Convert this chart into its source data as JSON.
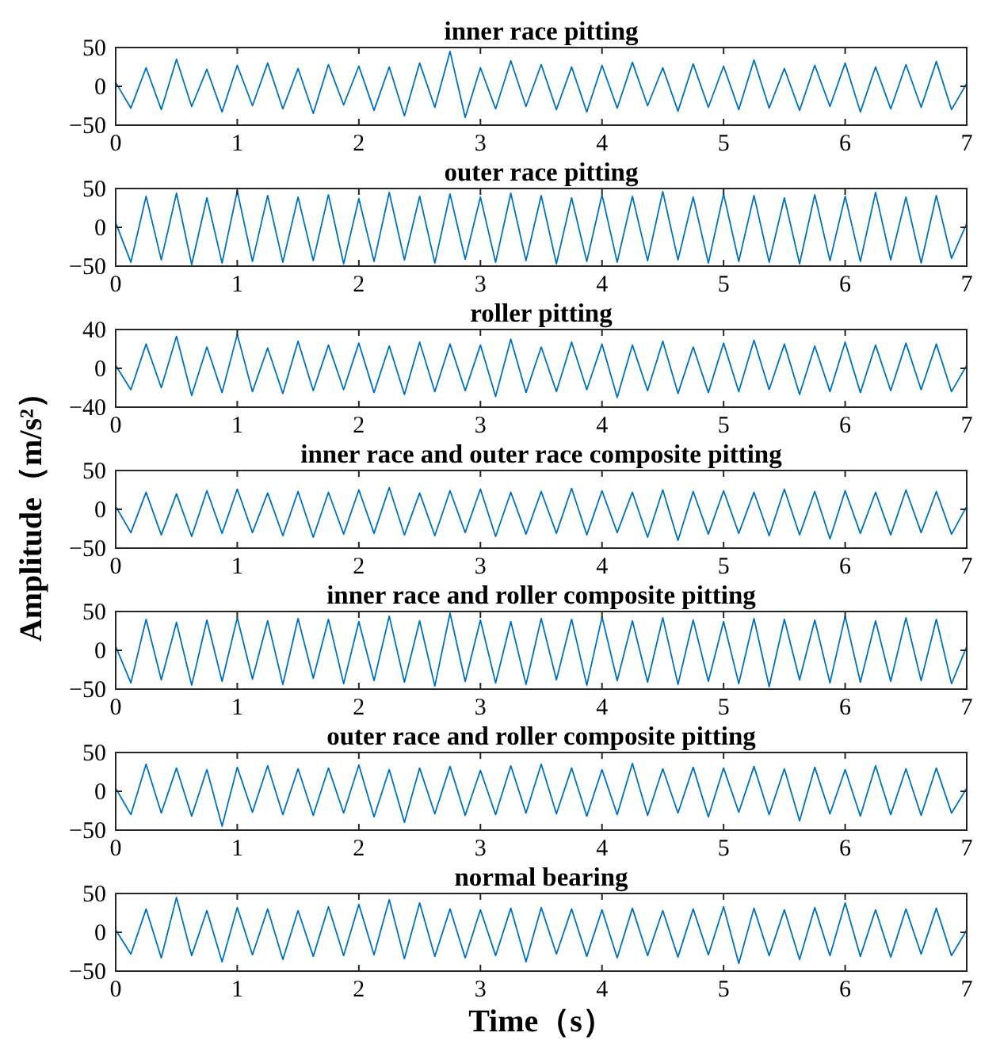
{
  "chart_data": [
    {
      "type": "line",
      "title": "inner race pitting",
      "x": [
        0,
        0.125,
        0.25,
        0.375,
        0.5,
        0.625,
        0.75,
        0.875,
        1,
        1.125,
        1.25,
        1.375,
        1.5,
        1.625,
        1.75,
        1.875,
        2,
        2.125,
        2.25,
        2.375,
        2.5,
        2.625,
        2.75,
        2.875,
        3,
        3.125,
        3.25,
        3.375,
        3.5,
        3.625,
        3.75,
        3.875,
        4,
        4.125,
        4.25,
        4.375,
        4.5,
        4.625,
        4.75,
        4.875,
        5,
        5.125,
        5.25,
        5.375,
        5.5,
        5.625,
        5.75,
        5.875,
        6,
        6.125,
        6.25,
        6.375,
        6.5,
        6.625,
        6.75,
        6.875,
        7
      ],
      "series": [
        {
          "color": "#0072bd",
          "values": [
            5,
            -28,
            24,
            -30,
            35,
            -26,
            22,
            -33,
            27,
            -25,
            30,
            -29,
            23,
            -35,
            28,
            -24,
            26,
            -31,
            25,
            -38,
            30,
            -27,
            45,
            -40,
            24,
            -29,
            33,
            -26,
            28,
            -30,
            25,
            -33,
            27,
            -28,
            31,
            -25,
            24,
            -32,
            29,
            -27,
            26,
            -30,
            34,
            -28,
            23,
            -31,
            27,
            -26,
            30,
            -33,
            25,
            -29,
            28,
            -27,
            32,
            -30,
            4
          ]
        }
      ],
      "xlim": [
        0,
        7
      ],
      "xticks": [
        0,
        1,
        2,
        3,
        4,
        5,
        6,
        7
      ],
      "ylim": [
        -50,
        50
      ],
      "yticks": [
        -50,
        0,
        50
      ]
    },
    {
      "type": "line",
      "title": "outer race pitting",
      "x": [
        0,
        0.125,
        0.25,
        0.375,
        0.5,
        0.625,
        0.75,
        0.875,
        1,
        1.125,
        1.25,
        1.375,
        1.5,
        1.625,
        1.75,
        1.875,
        2,
        2.125,
        2.25,
        2.375,
        2.5,
        2.625,
        2.75,
        2.875,
        3,
        3.125,
        3.25,
        3.375,
        3.5,
        3.625,
        3.75,
        3.875,
        4,
        4.125,
        4.25,
        4.375,
        4.5,
        4.625,
        4.75,
        4.875,
        5,
        5.125,
        5.25,
        5.375,
        5.5,
        5.625,
        5.75,
        5.875,
        6,
        6.125,
        6.25,
        6.375,
        6.5,
        6.625,
        6.75,
        6.875,
        7
      ],
      "series": [
        {
          "color": "#0072bd",
          "values": [
            6,
            -45,
            40,
            -42,
            44,
            -48,
            38,
            -46,
            47,
            -44,
            41,
            -45,
            39,
            -43,
            42,
            -47,
            37,
            -44,
            45,
            -42,
            40,
            -46,
            43,
            -41,
            39,
            -45,
            44,
            -43,
            41,
            -47,
            38,
            -44,
            42,
            -45,
            40,
            -43,
            46,
            -42,
            39,
            -46,
            43,
            -44,
            41,
            -45,
            38,
            -47,
            42,
            -43,
            40,
            -44,
            45,
            -42,
            39,
            -46,
            41,
            -40,
            5
          ]
        }
      ],
      "xlim": [
        0,
        7
      ],
      "xticks": [
        0,
        1,
        2,
        3,
        4,
        5,
        6,
        7
      ],
      "ylim": [
        -50,
        50
      ],
      "yticks": [
        -50,
        0,
        50
      ]
    },
    {
      "type": "line",
      "title": "roller pitting",
      "x": [
        0,
        0.125,
        0.25,
        0.375,
        0.5,
        0.625,
        0.75,
        0.875,
        1,
        1.125,
        1.25,
        1.375,
        1.5,
        1.625,
        1.75,
        1.875,
        2,
        2.125,
        2.25,
        2.375,
        2.5,
        2.625,
        2.75,
        2.875,
        3,
        3.125,
        3.25,
        3.375,
        3.5,
        3.625,
        3.75,
        3.875,
        4,
        4.125,
        4.25,
        4.375,
        4.5,
        4.625,
        4.75,
        4.875,
        5,
        5.125,
        5.25,
        5.375,
        5.5,
        5.625,
        5.75,
        5.875,
        6,
        6.125,
        6.25,
        6.375,
        6.5,
        6.625,
        6.75,
        6.875,
        7
      ],
      "series": [
        {
          "color": "#0072bd",
          "values": [
            3,
            -22,
            25,
            -20,
            33,
            -28,
            22,
            -25,
            35,
            -24,
            21,
            -26,
            28,
            -23,
            24,
            -22,
            26,
            -25,
            23,
            -27,
            27,
            -24,
            25,
            -23,
            24,
            -29,
            30,
            -25,
            22,
            -24,
            27,
            -22,
            25,
            -30,
            24,
            -23,
            28,
            -26,
            22,
            -25,
            26,
            -24,
            29,
            -22,
            25,
            -27,
            23,
            -24,
            27,
            -25,
            24,
            -23,
            26,
            -22,
            25,
            -24,
            3
          ]
        }
      ],
      "xlim": [
        0,
        7
      ],
      "xticks": [
        0,
        1,
        2,
        3,
        4,
        5,
        6,
        7
      ],
      "ylim": [
        -40,
        40
      ],
      "yticks": [
        -40,
        0,
        40
      ]
    },
    {
      "type": "line",
      "title": "inner race and outer race composite pitting",
      "ylabel": "Amplitude（m/s²）",
      "x": [
        0,
        0.125,
        0.25,
        0.375,
        0.5,
        0.625,
        0.75,
        0.875,
        1,
        1.125,
        1.25,
        1.375,
        1.5,
        1.625,
        1.75,
        1.875,
        2,
        2.125,
        2.25,
        2.375,
        2.5,
        2.625,
        2.75,
        2.875,
        3,
        3.125,
        3.25,
        3.375,
        3.5,
        3.625,
        3.75,
        3.875,
        4,
        4.125,
        4.25,
        4.375,
        4.5,
        4.625,
        4.75,
        4.875,
        5,
        5.125,
        5.25,
        5.375,
        5.5,
        5.625,
        5.75,
        5.875,
        6,
        6.125,
        6.25,
        6.375,
        6.5,
        6.625,
        6.75,
        6.875,
        7
      ],
      "series": [
        {
          "color": "#0072bd",
          "values": [
            4,
            -30,
            22,
            -33,
            20,
            -35,
            24,
            -31,
            26,
            -30,
            21,
            -34,
            23,
            -36,
            22,
            -32,
            25,
            -31,
            28,
            -33,
            21,
            -34,
            24,
            -30,
            26,
            -35,
            22,
            -32,
            23,
            -31,
            27,
            -33,
            24,
            -30,
            22,
            -36,
            25,
            -40,
            23,
            -32,
            24,
            -31,
            22,
            -34,
            26,
            -33,
            23,
            -38,
            24,
            -31,
            22,
            -33,
            25,
            -30,
            23,
            -32,
            4
          ]
        }
      ],
      "xlim": [
        0,
        7
      ],
      "xticks": [
        0,
        1,
        2,
        3,
        4,
        5,
        6,
        7
      ],
      "ylim": [
        -50,
        50
      ],
      "yticks": [
        -50,
        0,
        50
      ]
    },
    {
      "type": "line",
      "title": "inner race and roller composite pitting",
      "x": [
        0,
        0.125,
        0.25,
        0.375,
        0.5,
        0.625,
        0.75,
        0.875,
        1,
        1.125,
        1.25,
        1.375,
        1.5,
        1.625,
        1.75,
        1.875,
        2,
        2.125,
        2.25,
        2.375,
        2.5,
        2.625,
        2.75,
        2.875,
        3,
        3.125,
        3.25,
        3.375,
        3.5,
        3.625,
        3.75,
        3.875,
        4,
        4.125,
        4.25,
        4.375,
        4.5,
        4.625,
        4.75,
        4.875,
        5,
        5.125,
        5.25,
        5.375,
        5.5,
        5.625,
        5.75,
        5.875,
        6,
        6.125,
        6.25,
        6.375,
        6.5,
        6.625,
        6.75,
        6.875,
        7
      ],
      "series": [
        {
          "color": "#0072bd",
          "values": [
            5,
            -42,
            40,
            -38,
            36,
            -45,
            39,
            -40,
            42,
            -37,
            38,
            -44,
            41,
            -36,
            40,
            -43,
            37,
            -39,
            44,
            -41,
            38,
            -46,
            48,
            -40,
            39,
            -42,
            37,
            -44,
            41,
            -38,
            40,
            -45,
            43,
            -39,
            38,
            -41,
            42,
            -44,
            39,
            -40,
            37,
            -43,
            41,
            -47,
            40,
            -38,
            39,
            -42,
            44,
            -41,
            38,
            -40,
            42,
            -39,
            40,
            -43,
            5
          ]
        }
      ],
      "xlim": [
        0,
        7
      ],
      "xticks": [
        0,
        1,
        2,
        3,
        4,
        5,
        6,
        7
      ],
      "ylim": [
        -50,
        50
      ],
      "yticks": [
        -50,
        0,
        50
      ]
    },
    {
      "type": "line",
      "title": "outer race and roller composite pitting",
      "x": [
        0,
        0.125,
        0.25,
        0.375,
        0.5,
        0.625,
        0.75,
        0.875,
        1,
        1.125,
        1.25,
        1.375,
        1.5,
        1.625,
        1.75,
        1.875,
        2,
        2.125,
        2.25,
        2.375,
        2.5,
        2.625,
        2.75,
        2.875,
        3,
        3.125,
        3.25,
        3.375,
        3.5,
        3.625,
        3.75,
        3.875,
        4,
        4.125,
        4.25,
        4.375,
        4.5,
        4.625,
        4.75,
        4.875,
        5,
        5.125,
        5.25,
        5.375,
        5.5,
        5.625,
        5.75,
        5.875,
        6,
        6.125,
        6.25,
        6.375,
        6.5,
        6.625,
        6.75,
        6.875,
        7
      ],
      "series": [
        {
          "color": "#0072bd",
          "values": [
            4,
            -30,
            35,
            -28,
            30,
            -32,
            28,
            -45,
            31,
            -27,
            33,
            -30,
            29,
            -31,
            30,
            -28,
            34,
            -33,
            28,
            -40,
            30,
            -29,
            32,
            -31,
            27,
            -30,
            33,
            -28,
            35,
            -29,
            30,
            -32,
            28,
            -30,
            36,
            -31,
            29,
            -28,
            31,
            -33,
            30,
            -27,
            32,
            -30,
            29,
            -38,
            31,
            -29,
            28,
            -32,
            33,
            -30,
            29,
            -31,
            30,
            -28,
            4
          ]
        }
      ],
      "xlim": [
        0,
        7
      ],
      "xticks": [
        0,
        1,
        2,
        3,
        4,
        5,
        6,
        7
      ],
      "ylim": [
        -50,
        50
      ],
      "yticks": [
        -50,
        0,
        50
      ]
    },
    {
      "type": "line",
      "title": "normal bearing",
      "xlabel": "Time（s）",
      "x": [
        0,
        0.125,
        0.25,
        0.375,
        0.5,
        0.625,
        0.75,
        0.875,
        1,
        1.125,
        1.25,
        1.375,
        1.5,
        1.625,
        1.75,
        1.875,
        2,
        2.125,
        2.25,
        2.375,
        2.5,
        2.625,
        2.75,
        2.875,
        3,
        3.125,
        3.25,
        3.375,
        3.5,
        3.625,
        3.75,
        3.875,
        4,
        4.125,
        4.25,
        4.375,
        4.5,
        4.625,
        4.75,
        4.875,
        5,
        5.125,
        5.25,
        5.375,
        5.5,
        5.625,
        5.75,
        5.875,
        6,
        6.125,
        6.25,
        6.375,
        6.5,
        6.625,
        6.75,
        6.875,
        7
      ],
      "series": [
        {
          "color": "#0072bd",
          "values": [
            3,
            -28,
            30,
            -33,
            45,
            -30,
            28,
            -38,
            32,
            -29,
            30,
            -35,
            28,
            -31,
            33,
            -30,
            36,
            -29,
            42,
            -34,
            38,
            -31,
            30,
            -33,
            29,
            -30,
            31,
            -38,
            32,
            -28,
            30,
            -31,
            29,
            -33,
            31,
            -30,
            28,
            -32,
            30,
            -29,
            33,
            -40,
            31,
            -30,
            29,
            -35,
            32,
            -30,
            38,
            -31,
            29,
            -32,
            30,
            -28,
            31,
            -30,
            3
          ]
        }
      ],
      "xlim": [
        0,
        7
      ],
      "xticks": [
        0,
        1,
        2,
        3,
        4,
        5,
        6,
        7
      ],
      "ylim": [
        -50,
        50
      ],
      "yticks": [
        -50,
        0,
        50
      ]
    }
  ]
}
